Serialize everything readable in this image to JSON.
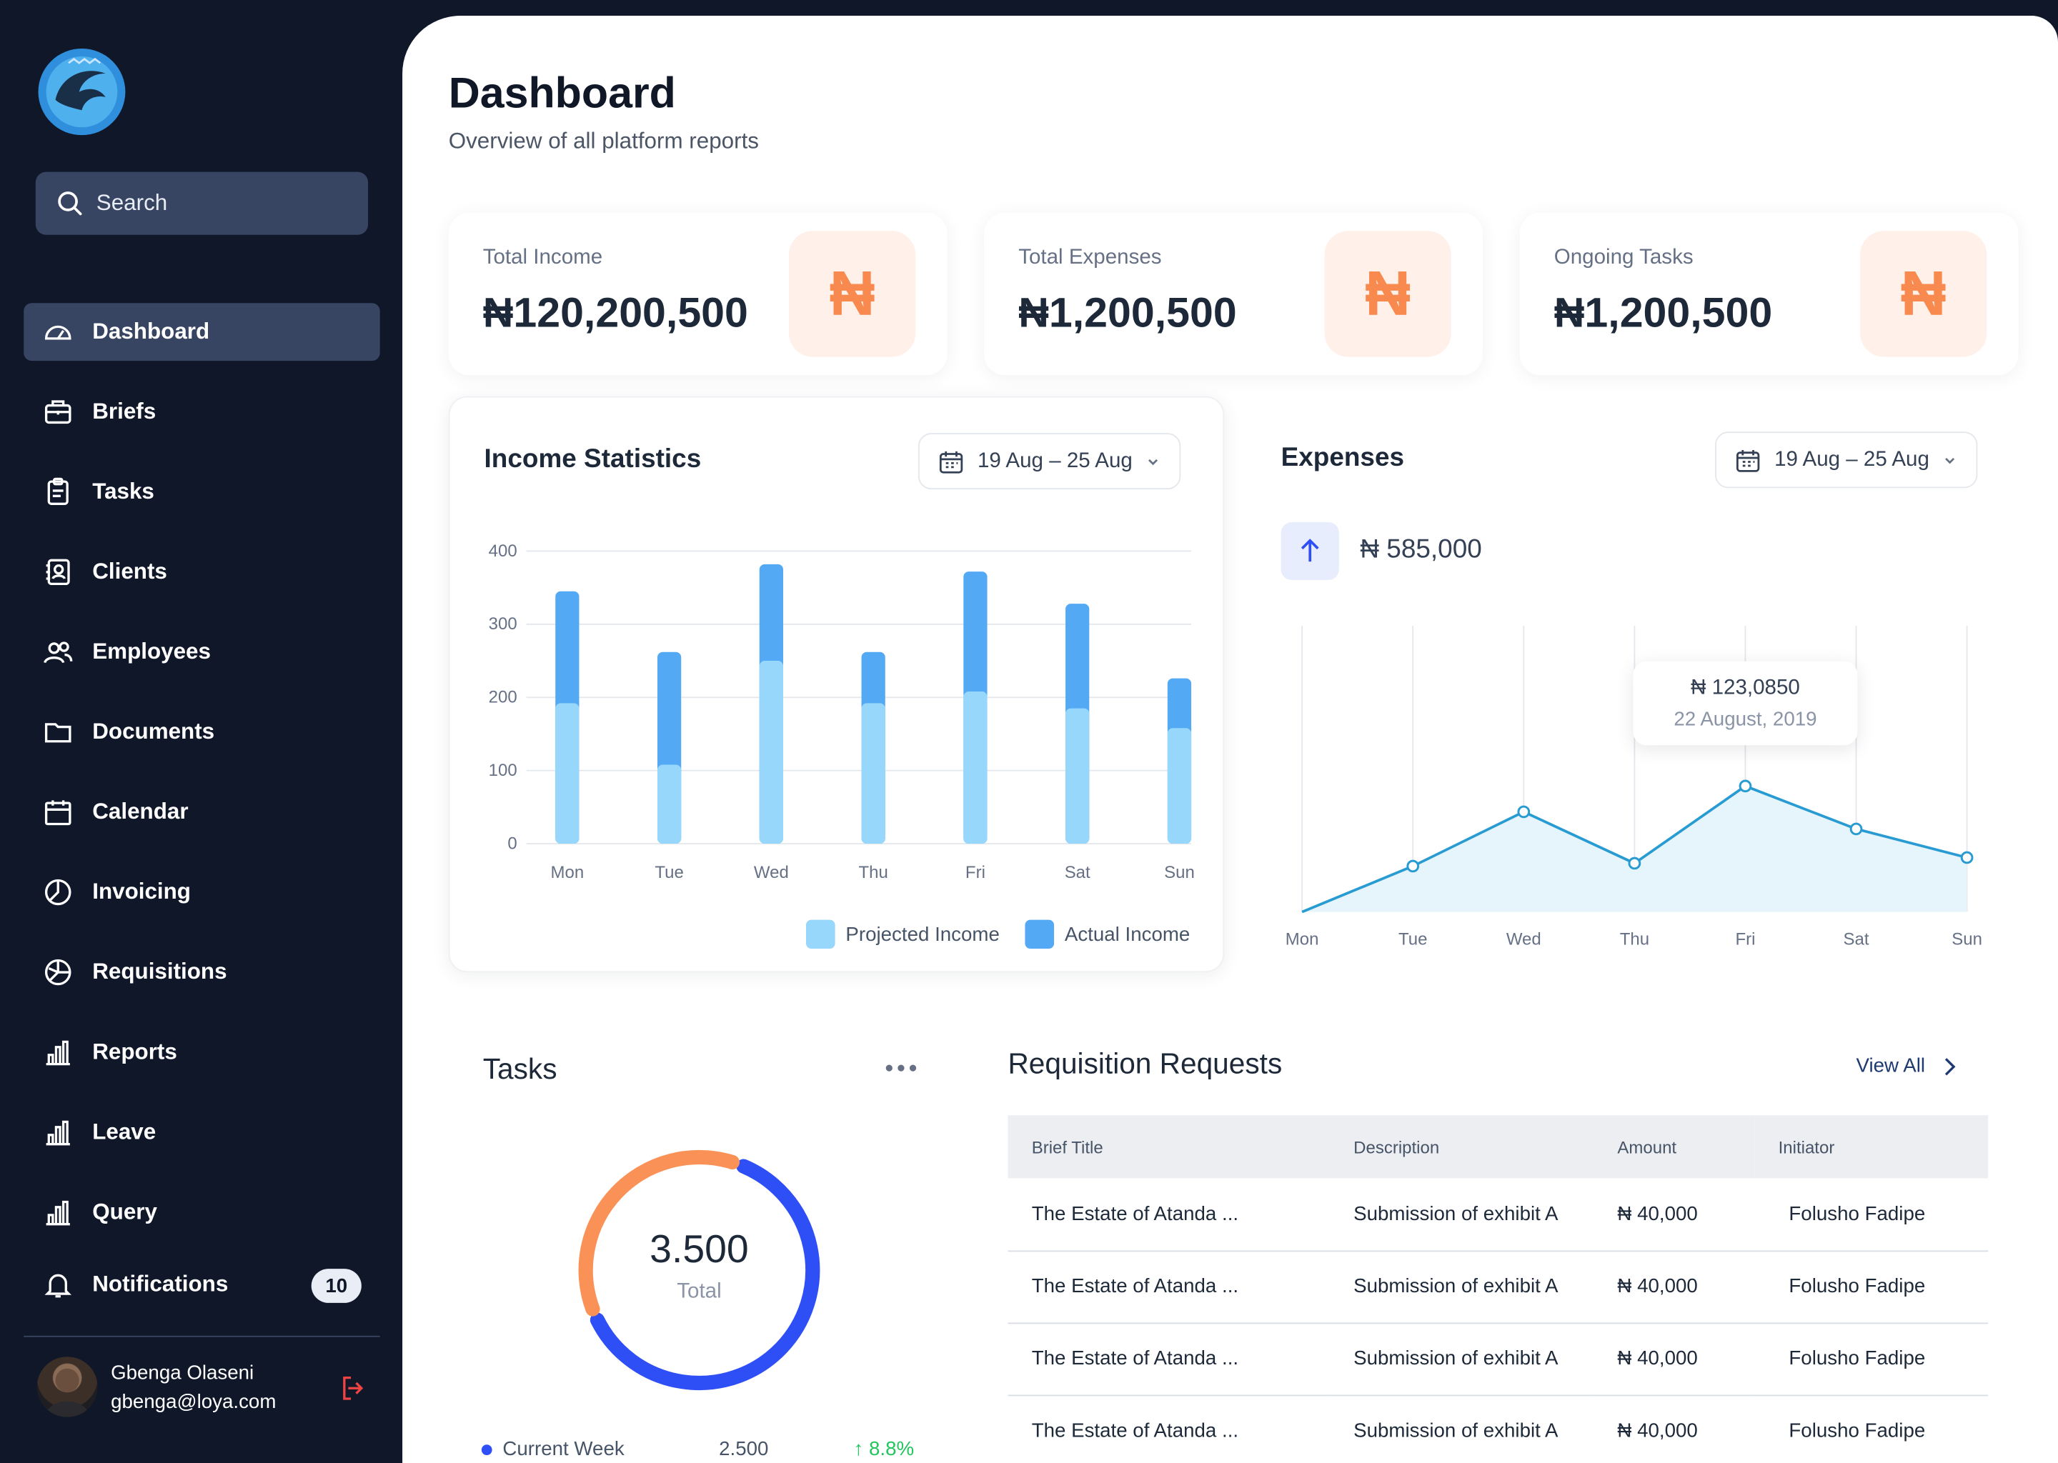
{
  "sidebar": {
    "search_placeholder": "Search",
    "items": [
      {
        "label": "Dashboard"
      },
      {
        "label": "Briefs"
      },
      {
        "label": "Tasks"
      },
      {
        "label": "Clients"
      },
      {
        "label": "Employees"
      },
      {
        "label": "Documents"
      },
      {
        "label": "Calendar"
      },
      {
        "label": "Invoicing"
      },
      {
        "label": "Requisitions"
      },
      {
        "label": "Reports"
      },
      {
        "label": "Leave"
      },
      {
        "label": "Query"
      },
      {
        "label": "Notifications",
        "badge": "10"
      }
    ],
    "user": {
      "name": "Gbenga Olaseni",
      "email": "gbenga@loya.com"
    }
  },
  "header": {
    "title": "Dashboard",
    "subtitle": "Overview of all platform reports"
  },
  "kpis": [
    {
      "label": "Total Income",
      "value": "₦120,200,500",
      "icon": "₦"
    },
    {
      "label": "Total Expenses",
      "value": "₦1,200,500",
      "icon": "₦"
    },
    {
      "label": "Ongoing Tasks",
      "value": "₦1,200,500",
      "icon": "₦"
    }
  ],
  "income": {
    "title": "Income Statistics",
    "date_range": "19 Aug – 25 Aug",
    "legend": [
      "Projected Income",
      "Actual Income"
    ]
  },
  "expenses": {
    "title": "Expenses",
    "date_range": "19 Aug – 25 Aug",
    "total": "₦ 585,000",
    "tooltip_value": "₦ 123,0850",
    "tooltip_date": "22 August, 2019"
  },
  "tasks": {
    "title": "Tasks",
    "total_value": "3.500",
    "total_label": "Total",
    "current_week_label": "Current Week",
    "current_week_value": "2.500",
    "current_week_change": "↑ 8.8%"
  },
  "requisitions": {
    "title": "Requisition Requests",
    "view_all": "View All",
    "columns": [
      "Brief Title",
      "Description",
      "Amount",
      "Initiator"
    ],
    "rows": [
      [
        "The Estate of Atanda ...",
        "Submission of exhibit A",
        "₦ 40,000",
        "Folusho Fadipe"
      ],
      [
        "The Estate of Atanda ...",
        "Submission of exhibit A",
        "₦ 40,000",
        "Folusho Fadipe"
      ],
      [
        "The Estate of Atanda ...",
        "Submission of exhibit A",
        "₦ 40,000",
        "Folusho Fadipe"
      ],
      [
        "The Estate of Atanda ...",
        "Submission of exhibit A",
        "₦ 40,000",
        "Folusho Fadipe"
      ]
    ]
  },
  "colors": {
    "sidebar_bg": "#0f1729",
    "accent_orange": "#f98a4f",
    "projected": "#96d7fb",
    "actual": "#54a9f5",
    "line": "#279bd2",
    "donut_blue": "#2f4ff6",
    "donut_orange": "#fa9157"
  },
  "chart_data": [
    {
      "type": "bar",
      "title": "Income Statistics",
      "categories": [
        "Mon",
        "Tue",
        "Wed",
        "Thu",
        "Fri",
        "Sat",
        "Sun"
      ],
      "series": [
        {
          "name": "Projected Income",
          "values": [
            192,
            108,
            250,
            192,
            208,
            185,
            158
          ]
        },
        {
          "name": "Actual Income",
          "values": [
            345,
            262,
            382,
            262,
            372,
            328,
            226
          ]
        }
      ],
      "stacked": "overlay",
      "ylim": [
        0,
        400
      ],
      "yticks": [
        0,
        100,
        200,
        300,
        400
      ],
      "grid": true,
      "legend": "bottom-right"
    },
    {
      "type": "area",
      "title": "Expenses",
      "categories": [
        "Mon",
        "Tue",
        "Wed",
        "Thu",
        "Fri",
        "Sat",
        "Sun"
      ],
      "values": [
        0,
        16,
        35,
        17,
        44,
        29,
        19
      ],
      "ylim": [
        0,
        100
      ],
      "grid": true
    },
    {
      "type": "pie",
      "title": "Tasks",
      "values": [
        63,
        37
      ],
      "center_value": "3.500",
      "center_label": "Total"
    }
  ]
}
